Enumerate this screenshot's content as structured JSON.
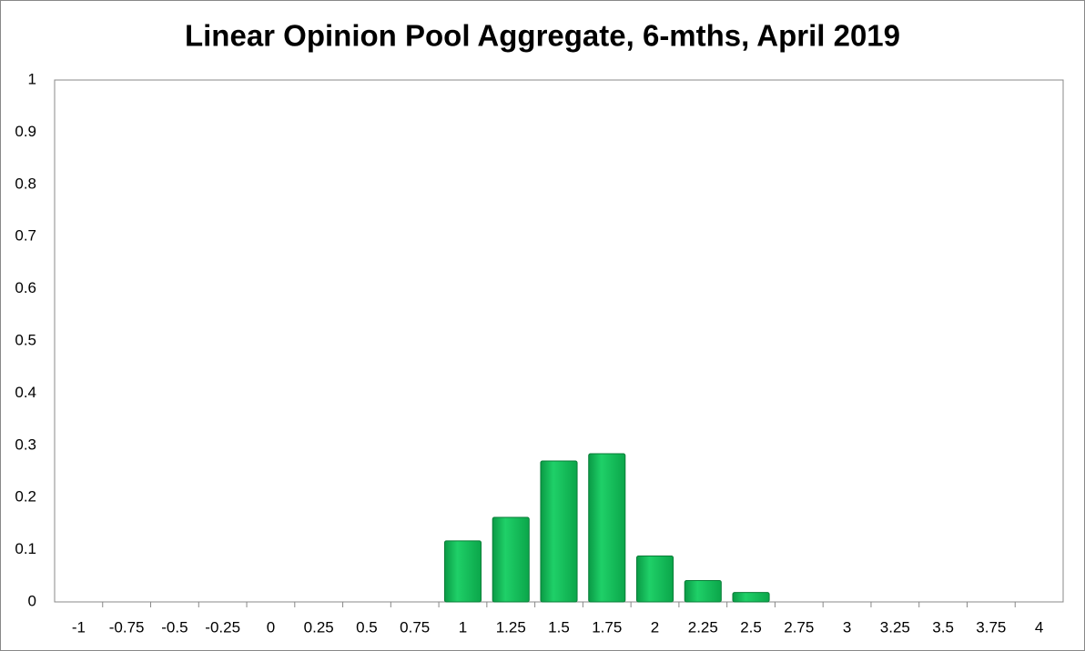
{
  "chart_data": {
    "type": "bar",
    "title": "Linear Opinion Pool Aggregate, 6-mths, April 2019",
    "categories": [
      "-1",
      "-0.75",
      "-0.5",
      "-0.25",
      "0",
      "0.25",
      "0.5",
      "0.75",
      "1",
      "1.25",
      "1.5",
      "1.75",
      "2",
      "2.25",
      "2.5",
      "2.75",
      "3",
      "3.25",
      "3.5",
      "3.75",
      "4"
    ],
    "values": [
      0,
      0,
      0,
      0,
      0,
      0,
      0,
      0,
      0.117,
      0.162,
      0.27,
      0.284,
      0.088,
      0.041,
      0.018,
      0,
      0,
      0,
      0,
      0,
      0
    ],
    "color": "#12bb55",
    "ylim": [
      0,
      1
    ],
    "yticks": [
      0,
      0.1,
      0.2,
      0.3,
      0.4,
      0.5,
      0.6,
      0.7,
      0.8,
      0.9,
      1
    ],
    "grid": false
  }
}
